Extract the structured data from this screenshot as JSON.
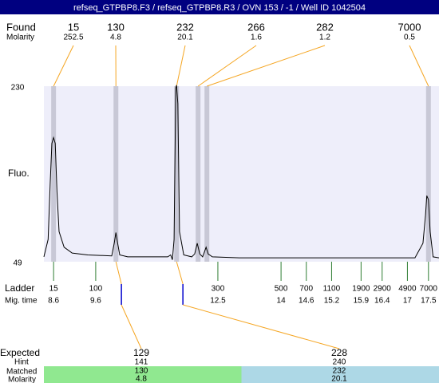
{
  "title": "refseq_GTPBP8.F3 / refseq_GTPBP8.R3 / OVN 153 / -1 / Well ID 1042504",
  "found": {
    "label": "Found",
    "sublabel": "Molarity",
    "peaks": [
      {
        "size": 15,
        "molarity": 252.5,
        "time": 8.6
      },
      {
        "size": 130,
        "molarity": 4.8,
        "time": 10.08
      },
      {
        "size": 232,
        "molarity": 20.1,
        "time": 11.52
      },
      {
        "size": 266,
        "molarity": 1.6,
        "time": 12.03
      },
      {
        "size": 282,
        "molarity": 1.2,
        "time": 12.24
      },
      {
        "size": 7000,
        "molarity": 0.5,
        "time": 17.5
      }
    ]
  },
  "axis": {
    "label": "Fluo.",
    "ylim": [
      49,
      230
    ],
    "yticks": [
      49,
      230
    ],
    "xlim": [
      8.37,
      17.75
    ]
  },
  "trace": {
    "time": [
      8.37,
      8.47,
      8.52,
      8.56,
      8.6,
      8.64,
      8.68,
      8.73,
      8.85,
      9.04,
      9.41,
      9.98,
      10.04,
      10.08,
      10.12,
      10.17,
      10.36,
      11.31,
      11.38,
      11.42,
      11.46,
      11.5,
      11.52,
      11.55,
      11.59,
      11.69,
      11.88,
      11.95,
      12.01,
      12.07,
      12.14,
      12.22,
      12.27,
      12.37,
      13.01,
      17.18,
      17.37,
      17.43,
      17.46,
      17.5,
      17.54,
      17.61,
      17.75
    ],
    "fluo": [
      54,
      72,
      130,
      171,
      177,
      171,
      121,
      80,
      64,
      58,
      56,
      55,
      68,
      79,
      68,
      56,
      54,
      54,
      56,
      51,
      72,
      228,
      231,
      212,
      80,
      56,
      54,
      57,
      68,
      57,
      54,
      64,
      57,
      54,
      53,
      53,
      68,
      97,
      117,
      113,
      80,
      54,
      53
    ]
  },
  "ladder": {
    "label": "Ladder",
    "sublabel": "Mig. time",
    "sizes": [
      15,
      100,
      300,
      500,
      700,
      1100,
      1900,
      2900,
      4900,
      7000
    ],
    "times": [
      8.6,
      9.6,
      12.5,
      14,
      14.6,
      15.2,
      15.9,
      16.4,
      17,
      17.5
    ]
  },
  "expected": {
    "label": "Expected",
    "hint_label": "Hint",
    "matched_label": "Matched",
    "molarity_label": "Molarity",
    "items": [
      {
        "size": 129,
        "time": 10.21,
        "hint": 141,
        "matched": 130,
        "molarity": 4.8
      },
      {
        "size": 228,
        "time": 11.67,
        "hint": 240,
        "matched": 232,
        "molarity": 20.1
      }
    ]
  }
}
